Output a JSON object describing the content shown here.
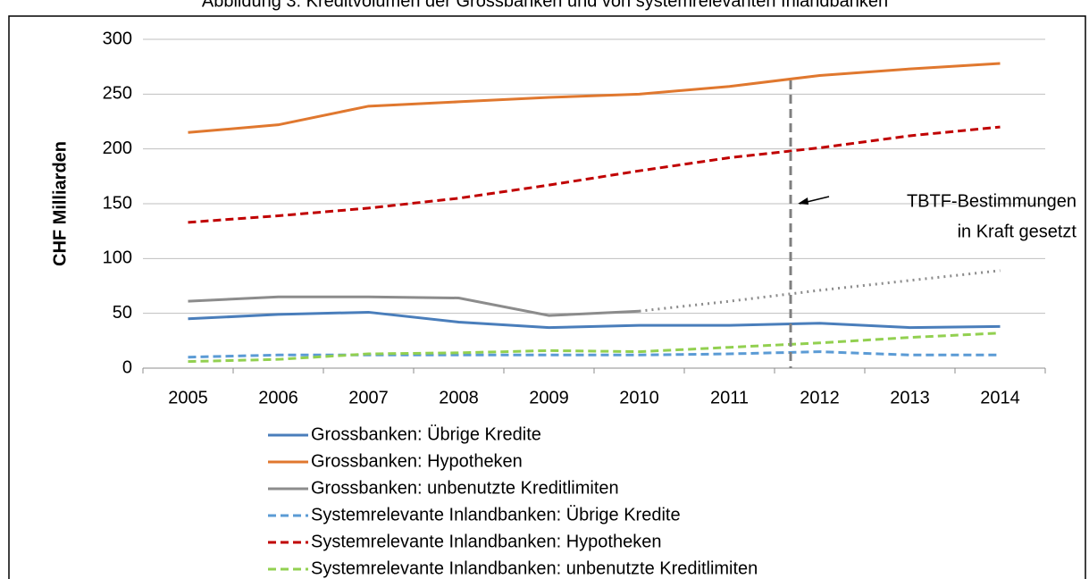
{
  "chart_data": {
    "type": "line",
    "title": "Abbildung 3: Kreditvolumen der Grossbanken und von systemrelevanten Inlandbanken",
    "y_label": "CHF Milliarden",
    "categories": [
      "2005",
      "2006",
      "2007",
      "2008",
      "2009",
      "2010",
      "2011",
      "2012",
      "2013",
      "2014"
    ],
    "ylim": [
      0,
      300
    ],
    "yticks": [
      0,
      50,
      100,
      150,
      200,
      250,
      300
    ],
    "grid": true,
    "legend": "bottom",
    "annotation": [
      "TBTF-Bestimmungen",
      "in Kraft gesetzt"
    ],
    "series": [
      {
        "name": "Grossbanken: Übrige Kredite",
        "color": "#4a7ebb",
        "dash": "solid",
        "values": [
          45,
          49,
          51,
          42,
          37,
          39,
          39,
          41,
          37,
          38
        ]
      },
      {
        "name": "Grossbanken: Hypotheken",
        "color": "#e0782f",
        "dash": "solid",
        "values": [
          215,
          222,
          239,
          243,
          247,
          250,
          257,
          267,
          273,
          278
        ]
      },
      {
        "name": "Grossbanken: unbenutzte Kreditlimiten",
        "color": "#8c8c8c",
        "dash": "solid",
        "dotted_from_index": 5,
        "values": [
          61,
          65,
          65,
          64,
          48,
          52,
          61,
          71,
          80,
          89
        ]
      },
      {
        "name": "Systemrelevante Inlandbanken: Übrige Kredite",
        "color": "#5b9bd5",
        "dash": "dashed",
        "values": [
          10,
          12,
          12,
          12,
          12,
          12,
          13,
          15,
          12,
          12
        ]
      },
      {
        "name": "Systemrelevante Inlandbanken: Hypotheken",
        "color": "#c00000",
        "dash": "dashed",
        "values": [
          133,
          139,
          146,
          155,
          167,
          180,
          192,
          201,
          212,
          220
        ]
      },
      {
        "name": "Systemrelevante Inlandbanken: unbenutzte Kreditlimiten",
        "color": "#92d050",
        "dash": "dashed",
        "values": [
          6,
          8,
          13,
          14,
          16,
          15,
          19,
          23,
          28,
          32
        ]
      }
    ]
  }
}
